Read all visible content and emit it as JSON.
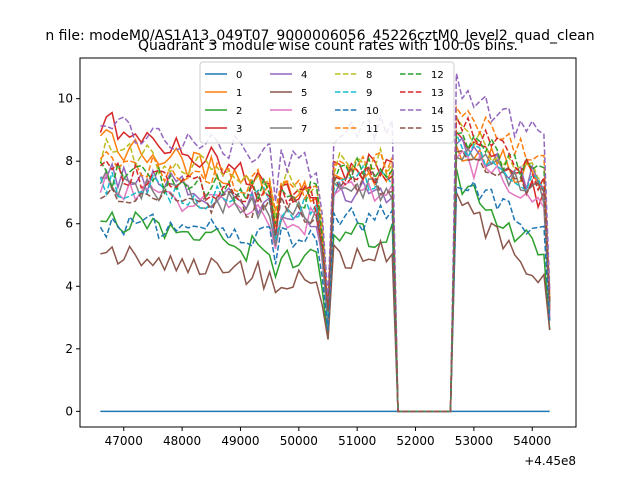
{
  "chart_data": {
    "type": "line",
    "suptitle": "n file: modeM0/AS1A13_049T07_9000006056_45226cztM0_level2_quad_clean",
    "title": "Quadrant 3 module wise count rates with 100.0s bins.",
    "xlabel": "",
    "ylabel": "",
    "x_offset_label": "+4.45e8",
    "xlim": [
      46250,
      54750
    ],
    "ylim": [
      -0.5,
      11.3
    ],
    "x_ticks": [
      47000,
      48000,
      49000,
      50000,
      51000,
      52000,
      53000,
      54000
    ],
    "x_tick_labels": [
      "47000",
      "48000",
      "49000",
      "50000",
      "51000",
      "52000",
      "53000",
      "54000"
    ],
    "y_ticks": [
      0,
      2,
      4,
      6,
      8,
      10
    ],
    "y_tick_labels": [
      "0",
      "2",
      "4",
      "6",
      "8",
      "10"
    ],
    "x_range": [
      46600,
      54300
    ],
    "x_step": 100,
    "gap": [
      51700,
      52600
    ],
    "legend": {
      "placement": "upper-center",
      "columns": 4
    },
    "series": [
      {
        "name": "0",
        "color": "#1f77b4",
        "style": "solid",
        "level_start": 0,
        "level_mid": 0,
        "level_end": 0,
        "level_post": 0,
        "level_last": 0,
        "dip1": 0,
        "dip2": 0
      },
      {
        "name": "1",
        "color": "#ff7f0e",
        "style": "solid",
        "level_start": 8.6,
        "level_mid": 6.9,
        "level_end": 7.4,
        "level_post": 8.5,
        "level_last": 7.4,
        "dip1": 5.3,
        "dip2": 3.0
      },
      {
        "name": "2",
        "color": "#2ca02c",
        "style": "solid",
        "level_start": 6.3,
        "level_mid": 4.7,
        "level_end": 5.6,
        "level_post": 7.4,
        "level_last": 5.0,
        "dip1": 3.7,
        "dip2": 2.3
      },
      {
        "name": "3",
        "color": "#d62728",
        "style": "solid",
        "level_start": 9.3,
        "level_mid": 6.8,
        "level_end": 7.8,
        "level_post": 9.0,
        "level_last": 6.8,
        "dip1": 4.9,
        "dip2": 3.0
      },
      {
        "name": "4",
        "color": "#9467bd",
        "style": "solid",
        "level_start": 7.7,
        "level_mid": 6.2,
        "level_end": 7.0,
        "level_post": 8.4,
        "level_last": 7.3,
        "dip1": 4.8,
        "dip2": 2.7
      },
      {
        "name": "5",
        "color": "#8c564b",
        "style": "solid",
        "level_start": 5.1,
        "level_mid": 4.1,
        "level_end": 5.0,
        "level_post": 6.6,
        "level_last": 4.3,
        "dip1": 3.2,
        "dip2": 2.3
      },
      {
        "name": "6",
        "color": "#e377c2",
        "style": "solid",
        "level_start": 7.3,
        "level_mid": 6.0,
        "level_end": 7.0,
        "level_post": 8.2,
        "level_last": 6.7,
        "dip1": 4.6,
        "dip2": 2.9
      },
      {
        "name": "7",
        "color": "#7f7f7f",
        "style": "solid",
        "level_start": 7.4,
        "level_mid": 6.3,
        "level_end": 7.1,
        "level_post": 8.3,
        "level_last": 6.9,
        "dip1": 4.7,
        "dip2": 2.9
      },
      {
        "name": "8",
        "color": "#bcbd22",
        "style": "dashed",
        "level_start": 8.3,
        "level_mid": 7.2,
        "level_end": 8.0,
        "level_post": 9.0,
        "level_last": 7.6,
        "dip1": 5.6,
        "dip2": 3.3
      },
      {
        "name": "9",
        "color": "#17becf",
        "style": "dashed",
        "level_start": 7.3,
        "level_mid": 6.5,
        "level_end": 7.4,
        "level_post": 8.6,
        "level_last": 7.0,
        "dip1": 4.9,
        "dip2": 3.1
      },
      {
        "name": "10",
        "color": "#1f77b4",
        "style": "dashed",
        "level_start": 6.0,
        "level_mid": 5.5,
        "level_end": 6.2,
        "level_post": 7.4,
        "level_last": 5.6,
        "dip1": 4.1,
        "dip2": 2.6
      },
      {
        "name": "11",
        "color": "#ff7f0e",
        "style": "dashed",
        "level_start": 8.0,
        "level_mid": 7.1,
        "level_end": 8.0,
        "level_post": 9.6,
        "level_last": 7.8,
        "dip1": 5.8,
        "dip2": 3.3
      },
      {
        "name": "12",
        "color": "#2ca02c",
        "style": "dashed",
        "level_start": 7.6,
        "level_mid": 6.9,
        "level_end": 7.7,
        "level_post": 8.9,
        "level_last": 7.4,
        "dip1": 5.4,
        "dip2": 3.2
      },
      {
        "name": "13",
        "color": "#d62728",
        "style": "dashed",
        "level_start": 7.6,
        "level_mid": 6.7,
        "level_end": 7.6,
        "level_post": 9.5,
        "level_last": 7.2,
        "dip1": 5.1,
        "dip2": 3.3
      },
      {
        "name": "14",
        "color": "#9467bd",
        "style": "dashed",
        "level_start": 9.2,
        "level_mid": 7.8,
        "level_end": 9.0,
        "level_post": 10.4,
        "level_last": 8.6,
        "dip1": 6.1,
        "dip2": 3.6
      },
      {
        "name": "15",
        "color": "#8c564b",
        "style": "dashed",
        "level_start": 7.0,
        "level_mid": 6.4,
        "level_end": 7.4,
        "level_post": 8.7,
        "level_last": 6.9,
        "dip1": 5.0,
        "dip2": 3.2
      }
    ]
  }
}
